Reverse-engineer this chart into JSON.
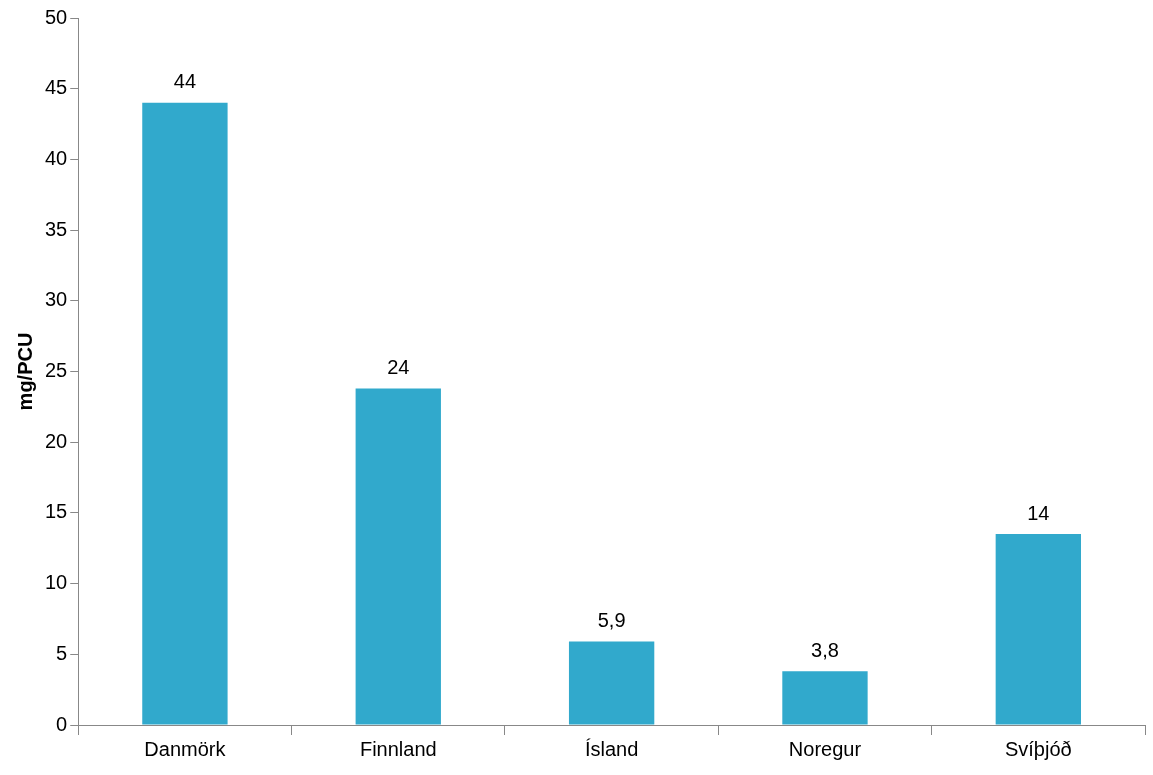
{
  "chart_data": {
    "type": "bar",
    "ylabel": "mg/PCU",
    "categories": [
      "Danmörk",
      "Finnland",
      "Ísland",
      "Noregur",
      "Svíþjóð"
    ],
    "values": [
      44,
      23.8,
      5.9,
      3.8,
      13.5
    ],
    "value_labels": [
      "44",
      "24",
      "5,9",
      "3,8",
      "14"
    ],
    "color": "#31a9cc",
    "ylim": [
      0,
      50
    ],
    "yticks": [
      0,
      5,
      10,
      15,
      20,
      25,
      30,
      35,
      40,
      45,
      50
    ],
    "grid": false,
    "legend": false
  }
}
